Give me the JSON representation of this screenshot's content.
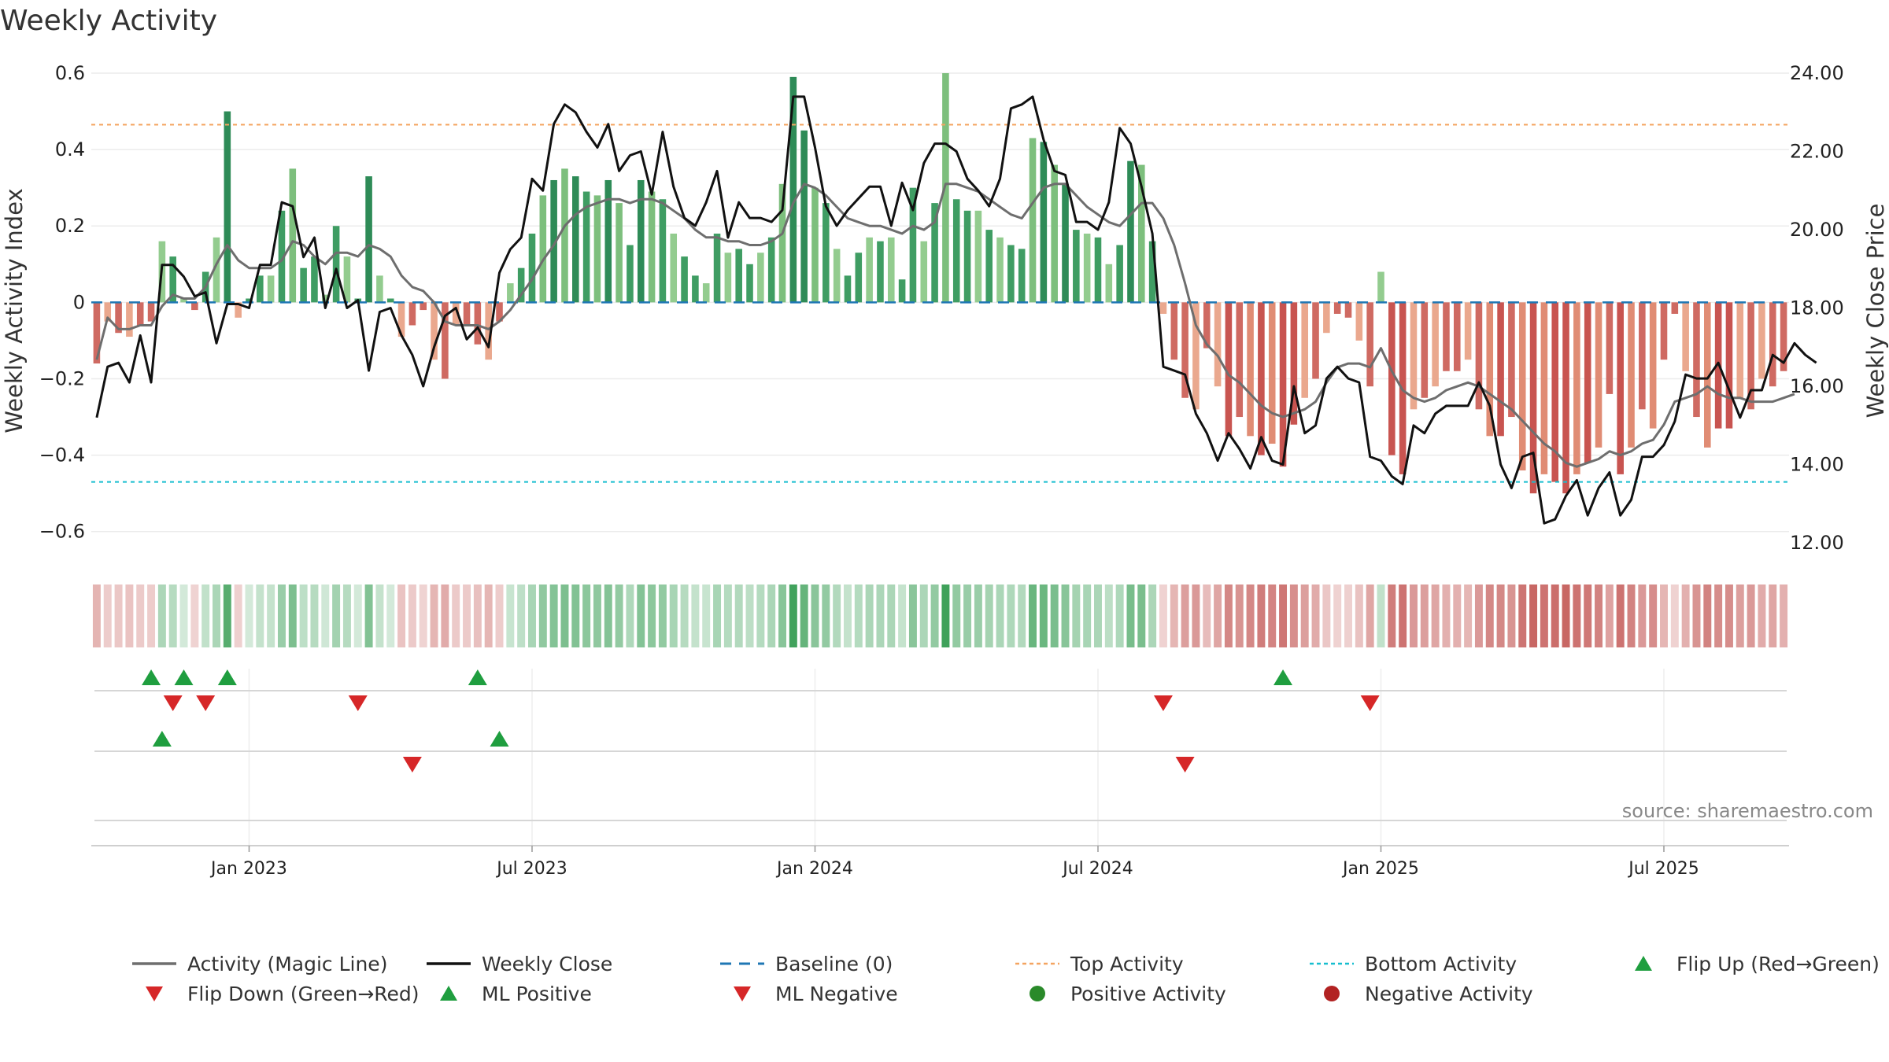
{
  "chart_data": {
    "type": "bar",
    "title": "Weekly Activity",
    "ylabel_left": "Weekly Activity Index",
    "ylabel_right": "Weekly Close Price",
    "ylim_left": [
      -0.65,
      0.6
    ],
    "ylim_right": [
      11.8,
      24.0
    ],
    "yticks_left": [
      {
        "v": 0.6,
        "label": "0.6"
      },
      {
        "v": 0.4,
        "label": "0.4"
      },
      {
        "v": 0.2,
        "label": "0.2"
      },
      {
        "v": 0,
        "label": "0"
      },
      {
        "v": -0.2,
        "label": "−0.2"
      },
      {
        "v": -0.4,
        "label": "−0.4"
      },
      {
        "v": -0.6,
        "label": "−0.6"
      }
    ],
    "yticks_right": [
      {
        "v": 24,
        "label": "24.00"
      },
      {
        "v": 22,
        "label": "22.00"
      },
      {
        "v": 20,
        "label": "20.00"
      },
      {
        "v": 18,
        "label": "18.00"
      },
      {
        "v": 16,
        "label": "16.00"
      },
      {
        "v": 14,
        "label": "14.00"
      },
      {
        "v": 12,
        "label": "12.00"
      }
    ],
    "xticks": [
      {
        "week": 14,
        "label": "Jan 2023"
      },
      {
        "week": 40,
        "label": "Jul 2023"
      },
      {
        "week": 66,
        "label": "Jan 2024"
      },
      {
        "week": 92,
        "label": "Jul 2024"
      },
      {
        "week": 118,
        "label": "Jan 2025"
      },
      {
        "week": 144,
        "label": "Jul 2025"
      }
    ],
    "n_weeks": 156,
    "top_activity": 0.465,
    "bottom_activity": -0.47,
    "baseline": 0,
    "activity": [
      -0.16,
      -0.05,
      -0.08,
      -0.09,
      -0.06,
      -0.05,
      0.16,
      0.12,
      0.01,
      -0.02,
      0.08,
      0.17,
      0.5,
      -0.04,
      0.01,
      0.07,
      0.07,
      0.24,
      0.35,
      0.09,
      0.12,
      0.02,
      0.2,
      0.12,
      0.01,
      0.33,
      0.07,
      0.01,
      -0.09,
      -0.06,
      -0.02,
      -0.15,
      -0.2,
      -0.06,
      -0.06,
      -0.11,
      -0.15,
      -0.05,
      0.05,
      0.09,
      0.18,
      0.28,
      0.32,
      0.35,
      0.33,
      0.29,
      0.28,
      0.32,
      0.26,
      0.15,
      0.32,
      0.29,
      0.27,
      0.18,
      0.12,
      0.07,
      0.05,
      0.18,
      0.13,
      0.14,
      0.1,
      0.13,
      0.17,
      0.31,
      0.59,
      0.45,
      0.3,
      0.26,
      0.14,
      0.07,
      0.13,
      0.17,
      0.16,
      0.17,
      0.06,
      0.3,
      0.16,
      0.26,
      0.6,
      0.27,
      0.24,
      0.24,
      0.19,
      0.17,
      0.15,
      0.14,
      0.43,
      0.42,
      0.36,
      0.31,
      0.19,
      0.18,
      0.17,
      0.1,
      0.15,
      0.37,
      0.36,
      0.16,
      -0.03,
      -0.15,
      -0.25,
      -0.28,
      -0.12,
      -0.22,
      -0.35,
      -0.3,
      -0.35,
      -0.4,
      -0.37,
      -0.43,
      -0.32,
      -0.25,
      -0.2,
      -0.08,
      -0.03,
      -0.04,
      -0.1,
      -0.22,
      0.08,
      -0.4,
      -0.45,
      -0.28,
      -0.25,
      -0.22,
      -0.18,
      -0.18,
      -0.15,
      -0.28,
      -0.35,
      -0.35,
      -0.3,
      -0.44,
      -0.5,
      -0.45,
      -0.47,
      -0.5,
      -0.45,
      -0.42,
      -0.38,
      -0.24,
      -0.45,
      -0.38,
      -0.28,
      -0.33,
      -0.15,
      -0.03,
      -0.18,
      -0.3,
      -0.38,
      -0.33,
      -0.33,
      -0.25,
      -0.28,
      -0.2,
      -0.22,
      -0.18
    ],
    "magic_line": [
      -0.15,
      -0.04,
      -0.07,
      -0.07,
      -0.06,
      -0.06,
      -0.01,
      0.02,
      0.01,
      0.01,
      0.04,
      0.1,
      0.15,
      0.11,
      0.09,
      0.09,
      0.09,
      0.11,
      0.16,
      0.15,
      0.12,
      0.1,
      0.13,
      0.13,
      0.12,
      0.15,
      0.14,
      0.12,
      0.07,
      0.04,
      0.03,
      0.0,
      -0.05,
      -0.06,
      -0.06,
      -0.06,
      -0.07,
      -0.05,
      -0.02,
      0.02,
      0.06,
      0.11,
      0.15,
      0.2,
      0.23,
      0.25,
      0.26,
      0.27,
      0.27,
      0.26,
      0.27,
      0.27,
      0.26,
      0.24,
      0.22,
      0.19,
      0.17,
      0.17,
      0.16,
      0.16,
      0.15,
      0.15,
      0.16,
      0.18,
      0.26,
      0.31,
      0.3,
      0.28,
      0.25,
      0.22,
      0.21,
      0.2,
      0.2,
      0.19,
      0.18,
      0.2,
      0.19,
      0.21,
      0.31,
      0.31,
      0.3,
      0.29,
      0.27,
      0.25,
      0.23,
      0.22,
      0.26,
      0.3,
      0.31,
      0.31,
      0.28,
      0.25,
      0.23,
      0.21,
      0.2,
      0.23,
      0.26,
      0.26,
      0.22,
      0.15,
      0.05,
      -0.06,
      -0.11,
      -0.14,
      -0.19,
      -0.21,
      -0.24,
      -0.27,
      -0.29,
      -0.3,
      -0.29,
      -0.28,
      -0.26,
      -0.21,
      -0.17,
      -0.16,
      -0.16,
      -0.17,
      -0.12,
      -0.18,
      -0.23,
      -0.25,
      -0.26,
      -0.25,
      -0.23,
      -0.22,
      -0.21,
      -0.22,
      -0.24,
      -0.26,
      -0.28,
      -0.31,
      -0.34,
      -0.37,
      -0.39,
      -0.42,
      -0.43,
      -0.42,
      -0.41,
      -0.39,
      -0.4,
      -0.39,
      -0.37,
      -0.36,
      -0.32,
      -0.26,
      -0.25,
      -0.24,
      -0.22,
      -0.24,
      -0.25,
      -0.25,
      -0.26,
      -0.26,
      -0.26,
      -0.25,
      -0.24
    ],
    "weekly_close": [
      15.2,
      16.5,
      16.6,
      16.1,
      17.3,
      16.1,
      19.1,
      19.1,
      18.8,
      18.3,
      18.4,
      17.1,
      18.1,
      18.1,
      18.0,
      19.1,
      19.1,
      20.7,
      20.6,
      19.3,
      19.8,
      18.0,
      19.0,
      18.0,
      18.2,
      16.4,
      17.9,
      18.0,
      17.3,
      16.8,
      16.0,
      17.0,
      17.8,
      18.0,
      17.2,
      17.5,
      17.0,
      18.9,
      19.5,
      19.8,
      21.3,
      21.0,
      22.7,
      23.2,
      23.0,
      22.5,
      22.1,
      22.7,
      21.5,
      21.9,
      22.0,
      20.9,
      22.5,
      21.1,
      20.3,
      20.1,
      20.7,
      21.5,
      19.8,
      20.7,
      20.3,
      20.3,
      20.2,
      20.5,
      23.4,
      23.4,
      22.1,
      20.6,
      20.1,
      20.5,
      20.8,
      21.1,
      21.1,
      20.1,
      21.2,
      20.5,
      21.7,
      22.2,
      22.2,
      22.0,
      21.3,
      21.0,
      20.6,
      21.3,
      23.1,
      23.2,
      23.4,
      22.3,
      21.5,
      21.4,
      20.2,
      20.2,
      20.0,
      20.7,
      22.6,
      22.2,
      21.1,
      19.9,
      16.5,
      16.4,
      16.3,
      15.3,
      14.8,
      14.1,
      14.8,
      14.4,
      13.9,
      14.7,
      14.1,
      14.0,
      16.0,
      14.8,
      15.0,
      16.2,
      16.5,
      16.2,
      16.1,
      14.2,
      14.1,
      13.7,
      13.5,
      15.0,
      14.8,
      15.3,
      15.5,
      15.5,
      15.5,
      16.1,
      15.5,
      14.0,
      13.4,
      14.2,
      14.3,
      12.5,
      12.6,
      13.2,
      13.6,
      12.7,
      13.4,
      13.8,
      12.7,
      13.1,
      14.2,
      14.2,
      14.5,
      15.1,
      16.3,
      16.2,
      16.2,
      16.6,
      15.9,
      15.2,
      15.9,
      15.9,
      16.8,
      16.6,
      17.1,
      16.8,
      16.6
    ],
    "flip_up_weeks": [
      5,
      8,
      12,
      35,
      109
    ],
    "flip_down_weeks": [
      7,
      10,
      24,
      98,
      117
    ],
    "ml_positive_weeks": [
      6,
      37
    ],
    "ml_negative_weeks": [
      29,
      100
    ],
    "source_text": "source: sharemaestro.com",
    "legend": [
      {
        "key": "magic",
        "label": "Activity (Magic Line)",
        "color": "#6e6e6e"
      },
      {
        "key": "close",
        "label": "Weekly Close",
        "color": "#111111"
      },
      {
        "key": "baseline",
        "label": "Baseline (0)",
        "color": "#1f77b4"
      },
      {
        "key": "top",
        "label": "Top Activity",
        "color": "#f4a460"
      },
      {
        "key": "bottom",
        "label": "Bottom Activity",
        "color": "#17becf"
      },
      {
        "key": "flipup",
        "label": "Flip Up (Red→Green)",
        "color": "#1f9e3f"
      },
      {
        "key": "flipdown",
        "label": "Flip Down (Green→Red)",
        "color": "#d62728"
      },
      {
        "key": "mlpos",
        "label": "ML Positive",
        "color": "#1f9e3f"
      },
      {
        "key": "mlneg",
        "label": "ML Negative",
        "color": "#d62728"
      },
      {
        "key": "posact",
        "label": "Positive Activity",
        "color": "#2a8a2a"
      },
      {
        "key": "negact",
        "label": "Negative Activity",
        "color": "#b22222"
      }
    ]
  }
}
